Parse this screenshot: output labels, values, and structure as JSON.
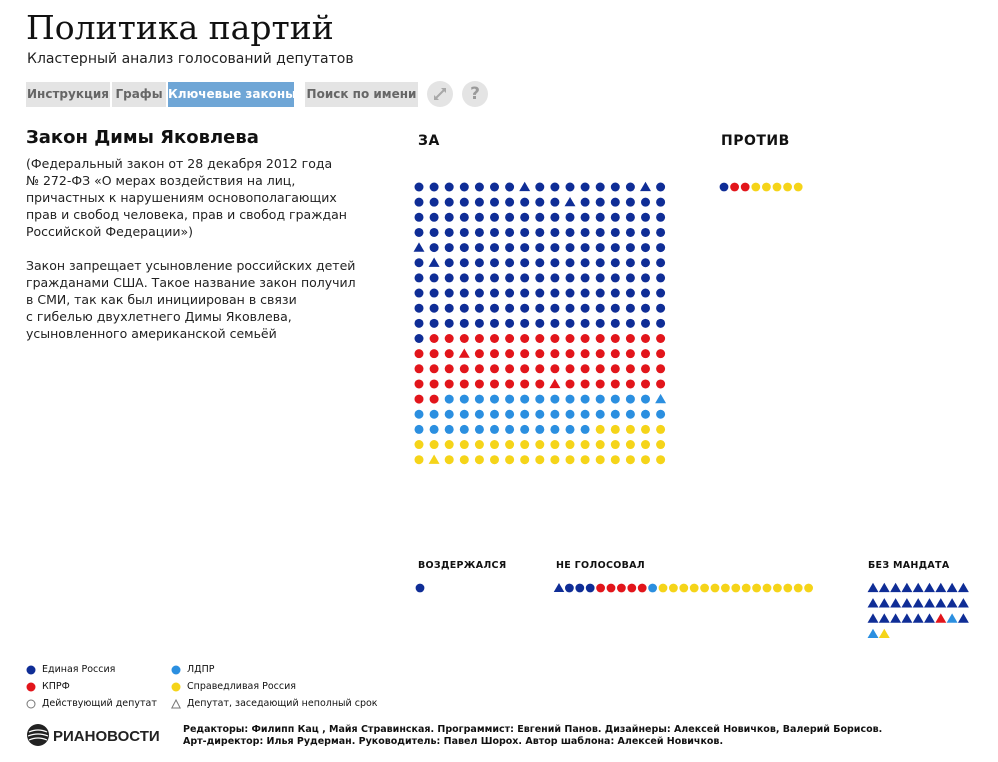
{
  "header": {
    "title": "Политика партий",
    "subtitle": "Кластерный анализ голосований депутатов"
  },
  "tabs": [
    {
      "label": "Инструкция",
      "active": false
    },
    {
      "label": "Графы",
      "active": false
    },
    {
      "label": "Ключевые законы",
      "active": true
    },
    {
      "label": "Поиск по имени",
      "active": false
    }
  ],
  "toolbar": {
    "expand_icon": "expand-arrows-icon",
    "help_label": "?"
  },
  "law": {
    "title": "Закон Димы Яковлева",
    "description": "(Федеральный закон от 28 декабря 2012 года\n№ 272-ФЗ «О мерах воздействия на лиц,\nпричастных к нарушениям основополагающих\nправ и свобод человека, прав и свобод граждан\nРоссийской Федерации»)",
    "summary": "Закон запрещает усыновление российских детей\nгражданами США. Такое название закон получил\nв СМИ, так как был инициирован в связи\nс гибелью двухлетнего Димы Яковлева,\nусыновленного американской семьёй"
  },
  "colors": {
    "er": "#0f2d96",
    "kprf": "#e2151b",
    "ldpr": "#2b8fe0",
    "sr": "#f5d419",
    "tab_active": "#6fa6d6",
    "tab_inactive": "#e4e4e4"
  },
  "chart_data": {
    "type": "unit",
    "unit_note": "one symbol per deputy; circle = active deputy, triangle = partial-term deputy",
    "groups": [
      {
        "title": "ЗА",
        "layout": "grid",
        "columns": 17,
        "rows": [
          [
            "er",
            "er",
            "er",
            "er",
            "er",
            "er",
            "er",
            "er_t",
            "er",
            "er",
            "er",
            "er",
            "er",
            "er",
            "er",
            "er_t",
            "er"
          ],
          [
            "er",
            "er",
            "er",
            "er",
            "er",
            "er",
            "er",
            "er",
            "er",
            "er",
            "er_t",
            "er",
            "er",
            "er",
            "er",
            "er",
            "er"
          ],
          [
            "er",
            "er",
            "er",
            "er",
            "er",
            "er",
            "er",
            "er",
            "er",
            "er",
            "er",
            "er",
            "er",
            "er",
            "er",
            "er",
            "er"
          ],
          [
            "er",
            "er",
            "er",
            "er",
            "er",
            "er",
            "er",
            "er",
            "er",
            "er",
            "er",
            "er",
            "er",
            "er",
            "er",
            "er",
            "er"
          ],
          [
            "er_t",
            "er",
            "er",
            "er",
            "er",
            "er",
            "er",
            "er",
            "er",
            "er",
            "er",
            "er",
            "er",
            "er",
            "er",
            "er",
            "er"
          ],
          [
            "er",
            "er_t",
            "er",
            "er",
            "er",
            "er",
            "er",
            "er",
            "er",
            "er",
            "er",
            "er",
            "er",
            "er",
            "er",
            "er",
            "er"
          ],
          [
            "er",
            "er",
            "er",
            "er",
            "er",
            "er",
            "er",
            "er",
            "er",
            "er",
            "er",
            "er",
            "er",
            "er",
            "er",
            "er",
            "er"
          ],
          [
            "er",
            "er",
            "er",
            "er",
            "er",
            "er",
            "er",
            "er",
            "er",
            "er",
            "er",
            "er",
            "er",
            "er",
            "er",
            "er",
            "er"
          ],
          [
            "er",
            "er",
            "er",
            "er",
            "er",
            "er",
            "er",
            "er",
            "er",
            "er",
            "er",
            "er",
            "er",
            "er",
            "er",
            "er",
            "er"
          ],
          [
            "er",
            "er",
            "er",
            "er",
            "er",
            "er",
            "er",
            "er",
            "er",
            "er",
            "er",
            "er",
            "er",
            "er",
            "er",
            "er",
            "er"
          ],
          [
            "er",
            "kprf",
            "kprf",
            "kprf",
            "kprf",
            "kprf",
            "kprf",
            "kprf",
            "kprf",
            "kprf",
            "kprf",
            "kprf",
            "kprf",
            "kprf",
            "kprf",
            "kprf",
            "kprf"
          ],
          [
            "kprf",
            "kprf",
            "kprf",
            "kprf_t",
            "kprf",
            "kprf",
            "kprf",
            "kprf",
            "kprf",
            "kprf",
            "kprf",
            "kprf",
            "kprf",
            "kprf",
            "kprf",
            "kprf",
            "kprf"
          ],
          [
            "kprf",
            "kprf",
            "kprf",
            "kprf",
            "kprf",
            "kprf",
            "kprf",
            "kprf",
            "kprf",
            "kprf",
            "kprf",
            "kprf",
            "kprf",
            "kprf",
            "kprf",
            "kprf",
            "kprf"
          ],
          [
            "kprf",
            "kprf",
            "kprf",
            "kprf",
            "kprf",
            "kprf",
            "kprf",
            "kprf",
            "kprf",
            "kprf_t",
            "kprf",
            "kprf",
            "kprf",
            "kprf",
            "kprf",
            "kprf",
            "kprf"
          ],
          [
            "kprf",
            "kprf",
            "ldpr",
            "ldpr",
            "ldpr",
            "ldpr",
            "ldpr",
            "ldpr",
            "ldpr",
            "ldpr",
            "ldpr",
            "ldpr",
            "ldpr",
            "ldpr",
            "ldpr",
            "ldpr",
            "ldpr_t"
          ],
          [
            "ldpr",
            "ldpr",
            "ldpr",
            "ldpr",
            "ldpr",
            "ldpr",
            "ldpr",
            "ldpr",
            "ldpr",
            "ldpr",
            "ldpr",
            "ldpr",
            "ldpr",
            "ldpr",
            "ldpr",
            "ldpr",
            "ldpr"
          ],
          [
            "ldpr",
            "ldpr",
            "ldpr",
            "ldpr",
            "ldpr",
            "ldpr",
            "ldpr",
            "ldpr",
            "ldpr",
            "ldpr",
            "ldpr",
            "ldpr",
            "sr",
            "sr",
            "sr",
            "sr",
            "sr"
          ],
          [
            "sr",
            "sr",
            "sr",
            "sr",
            "sr",
            "sr",
            "sr",
            "sr",
            "sr",
            "sr",
            "sr",
            "sr",
            "sr",
            "sr",
            "sr",
            "sr",
            "sr"
          ],
          [
            "sr",
            "sr_t",
            "sr",
            "sr",
            "sr",
            "sr",
            "sr",
            "sr",
            "sr",
            "sr",
            "sr",
            "sr",
            "sr",
            "sr",
            "sr",
            "sr",
            "sr"
          ]
        ]
      },
      {
        "title": "ПРОТИВ",
        "layout": "row",
        "members": [
          "er",
          "kprf",
          "kprf",
          "sr",
          "sr",
          "sr",
          "sr",
          "sr"
        ]
      },
      {
        "title": "ВОЗДЕРЖАЛСЯ",
        "layout": "row",
        "members": [
          "er"
        ]
      },
      {
        "title": "НЕ ГОЛОСОВАЛ",
        "layout": "row",
        "members": [
          "er_t",
          "er",
          "er",
          "er",
          "kprf",
          "kprf",
          "kprf",
          "kprf",
          "kprf",
          "ldpr",
          "sr",
          "sr",
          "sr",
          "sr",
          "sr",
          "sr",
          "sr",
          "sr",
          "sr",
          "sr",
          "sr",
          "sr",
          "sr",
          "sr",
          "sr"
        ]
      },
      {
        "title": "БЕЗ МАНДАТА",
        "layout": "grid",
        "columns": 9,
        "rows": [
          [
            "er_t",
            "er_t",
            "er_t",
            "er_t",
            "er_t",
            "er_t",
            "er_t",
            "er_t",
            "er_t"
          ],
          [
            "er_t",
            "er_t",
            "er_t",
            "er_t",
            "er_t",
            "er_t",
            "er_t",
            "er_t",
            "er_t"
          ],
          [
            "er_t",
            "er_t",
            "er_t",
            "er_t",
            "er_t",
            "er_t",
            "kprf_t",
            "ldpr_t",
            "er_t"
          ],
          [
            "ldpr_t",
            "sr_t"
          ]
        ]
      }
    ],
    "legend": [
      {
        "key": "er",
        "label": "Единая Россия",
        "shape": "circle-filled"
      },
      {
        "key": "ldpr",
        "label": "ЛДПР",
        "shape": "circle-filled"
      },
      {
        "key": "kprf",
        "label": "КПРФ",
        "shape": "circle-filled"
      },
      {
        "key": "sr",
        "label": "Справедливая Россия",
        "shape": "circle-filled"
      },
      {
        "key": "active",
        "label": "Действующий депутат",
        "shape": "circle-outline"
      },
      {
        "key": "partial",
        "label": "Депутат, заседающий неполный срок",
        "shape": "triangle-outline"
      }
    ]
  },
  "footer": {
    "logo_text": "РИАНОВОСТИ",
    "credits_line1": "Редакторы: Филипп Кац , Майя Стравинская. Программист: Евгений Панов. Дизайнеры: Алексей Новичков, Валерий Борисов.",
    "credits_line2": "Арт-директор: Илья Рудерман. Руководитель: Павел Шорох. Автор шаблона: Алексей Новичков."
  }
}
